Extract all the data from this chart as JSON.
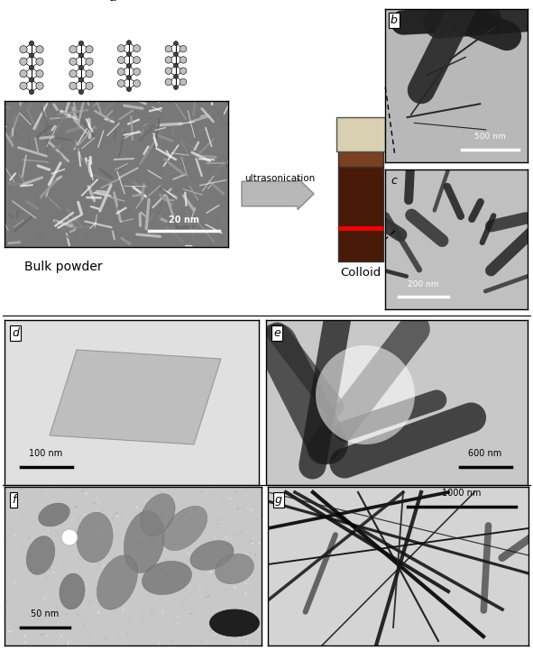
{
  "title_label": "a",
  "panel_labels": [
    "b",
    "c",
    "d",
    "e",
    "f",
    "g"
  ],
  "scale_bars": {
    "bulk": "20 nm",
    "b": "500 nm",
    "c": "200 nm",
    "d": "100 nm",
    "e": "600 nm",
    "f": "50 nm",
    "g": "1000 nm"
  },
  "text_labels": {
    "bulk_powder": "Bulk powder",
    "colloid": "Colloid",
    "arrow_text": "ultrasonication"
  },
  "bg_color": "#ffffff",
  "border_color": "#000000",
  "text_color": "#000000",
  "fig_width": 5.91,
  "fig_height": 7.21,
  "fig_dpi": 100
}
